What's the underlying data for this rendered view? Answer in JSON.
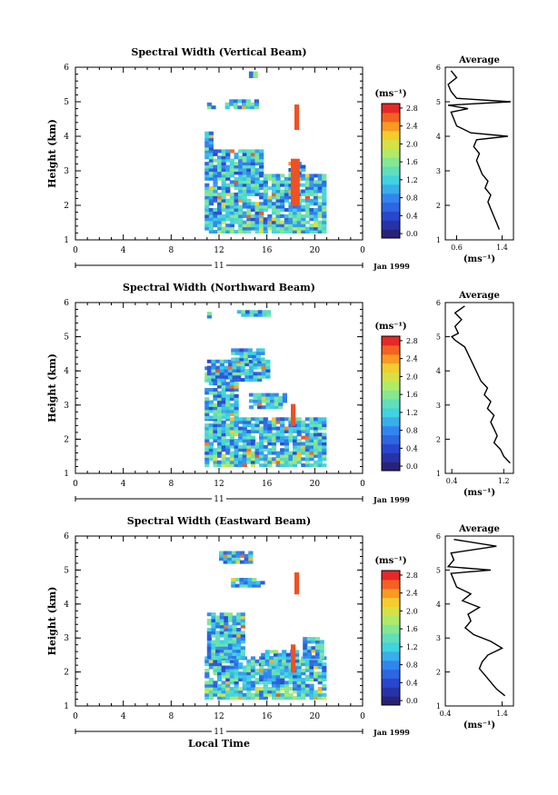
{
  "chart_data": [
    {
      "type": "heatmap",
      "title": "Spectral Width (Vertical Beam)",
      "ylabel": "Height (km)",
      "xlabel": "",
      "x_ticks": [
        "0",
        "4",
        "8",
        "12",
        "16",
        "20",
        "0"
      ],
      "y_ticks": [
        "1",
        "2",
        "3",
        "4",
        "5",
        "6"
      ],
      "xlim": [
        0,
        24
      ],
      "ylim": [
        1,
        6
      ],
      "date_day": "11",
      "date_label": "Jan 1999",
      "colorbar": {
        "unit": "(ms⁻¹)",
        "ticks": [
          "0.0",
          "0.4",
          "0.8",
          "1.2",
          "1.6",
          "2.0",
          "2.4",
          "2.8"
        ],
        "range": [
          0,
          3.0
        ]
      },
      "average": {
        "title": "Average",
        "xlabel": "(ms⁻¹)",
        "x_ticks": [
          "0.6",
          "1.4"
        ],
        "xlim": [
          0.4,
          1.6
        ],
        "y_ticks": [
          "1",
          "2",
          "3",
          "4",
          "5",
          "6"
        ],
        "heights": [
          1.3,
          1.5,
          1.7,
          1.9,
          2.1,
          2.3,
          2.5,
          2.7,
          2.9,
          3.1,
          3.3,
          3.5,
          3.7,
          3.9,
          4.0,
          4.1,
          4.3,
          4.5,
          4.7,
          4.8,
          4.9,
          5.0,
          5.1,
          5.3,
          5.5,
          5.7,
          5.9
        ],
        "values": [
          1.35,
          1.3,
          1.25,
          1.2,
          1.15,
          1.2,
          1.1,
          1.15,
          1.05,
          1.0,
          0.95,
          1.0,
          0.9,
          0.95,
          1.5,
          0.85,
          0.6,
          0.55,
          0.5,
          0.8,
          0.45,
          1.55,
          0.6,
          0.5,
          0.45,
          0.6,
          0.5
        ]
      }
    },
    {
      "type": "heatmap",
      "title": "Spectral Width (Northward Beam)",
      "ylabel": "Height (km)",
      "xlabel": "",
      "x_ticks": [
        "0",
        "4",
        "8",
        "12",
        "16",
        "20",
        "0"
      ],
      "y_ticks": [
        "1",
        "2",
        "3",
        "4",
        "5",
        "6"
      ],
      "xlim": [
        0,
        24
      ],
      "ylim": [
        1,
        6
      ],
      "date_day": "11",
      "date_label": "Jan 1999",
      "colorbar": {
        "unit": "(ms⁻¹)",
        "ticks": [
          "0.0",
          "0.4",
          "0.8",
          "1.2",
          "1.6",
          "2.0",
          "2.4",
          "2.8"
        ],
        "range": [
          0,
          3.0
        ]
      },
      "average": {
        "title": "Average",
        "xlabel": "(ms⁻¹)",
        "x_ticks": [
          "0.4",
          "1.2"
        ],
        "xlim": [
          0.3,
          1.35
        ],
        "y_ticks": [
          "1",
          "2",
          "3",
          "4",
          "5",
          "6"
        ],
        "heights": [
          1.3,
          1.5,
          1.7,
          1.9,
          2.1,
          2.3,
          2.5,
          2.7,
          2.9,
          3.1,
          3.3,
          3.5,
          3.7,
          3.9,
          4.1,
          4.3,
          4.5,
          4.7,
          4.9,
          5.0,
          5.1,
          5.3,
          5.5,
          5.7,
          5.9
        ],
        "values": [
          1.3,
          1.2,
          1.15,
          1.05,
          1.1,
          1.05,
          1.0,
          1.05,
          0.95,
          1.0,
          0.9,
          0.95,
          0.85,
          0.8,
          0.75,
          0.7,
          0.65,
          0.6,
          0.45,
          0.4,
          0.5,
          0.45,
          0.55,
          0.45,
          0.6
        ]
      }
    },
    {
      "type": "heatmap",
      "title": "Spectral Width (Eastward Beam)",
      "ylabel": "Height (km)",
      "xlabel": "Local Time",
      "x_ticks": [
        "0",
        "4",
        "8",
        "12",
        "16",
        "20",
        "0"
      ],
      "y_ticks": [
        "1",
        "2",
        "3",
        "4",
        "5",
        "6"
      ],
      "xlim": [
        0,
        24
      ],
      "ylim": [
        1,
        6
      ],
      "date_day": "11",
      "date_label": "Jan 1999",
      "colorbar": {
        "unit": "(ms⁻¹)",
        "ticks": [
          "0.0",
          "0.4",
          "0.8",
          "1.2",
          "1.6",
          "2.0",
          "2.4",
          "2.8"
        ],
        "range": [
          0,
          3.0
        ]
      },
      "average": {
        "title": "Average",
        "xlabel": "(ms⁻¹)",
        "x_ticks": [
          "0.4",
          "1.4"
        ],
        "xlim": [
          0.4,
          1.6
        ],
        "y_ticks": [
          "1",
          "2",
          "3",
          "4",
          "5",
          "6"
        ],
        "heights": [
          1.3,
          1.5,
          1.7,
          1.9,
          2.1,
          2.3,
          2.5,
          2.7,
          2.9,
          3.1,
          3.3,
          3.5,
          3.7,
          3.9,
          4.1,
          4.3,
          4.5,
          4.7,
          4.9,
          5.0,
          5.1,
          5.3,
          5.5,
          5.7,
          5.9
        ],
        "values": [
          1.45,
          1.3,
          1.2,
          1.1,
          1.0,
          1.05,
          1.15,
          1.4,
          1.2,
          0.9,
          0.75,
          0.85,
          0.8,
          1.0,
          0.7,
          0.85,
          0.6,
          0.55,
          0.5,
          1.2,
          0.45,
          0.55,
          0.5,
          1.3,
          0.55
        ]
      }
    }
  ]
}
